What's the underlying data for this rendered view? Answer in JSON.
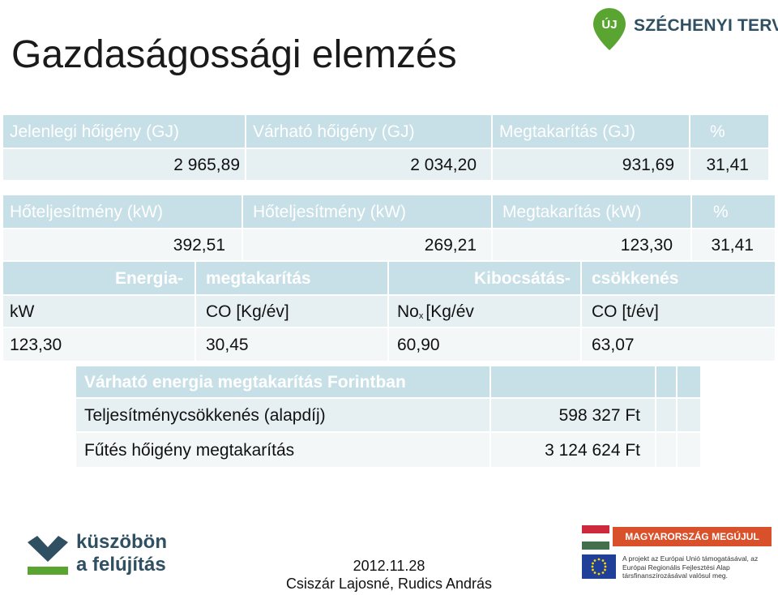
{
  "title": "Gazdaságossági elemzés",
  "logo_top": {
    "text": "SZÉCHENYI TERV",
    "pin_text": "ÚJ"
  },
  "table1": {
    "headers": [
      "Jelenlegi hőigény (GJ)",
      "Várható  hőigény  (GJ)",
      "Megtakarítás (GJ)",
      "%"
    ],
    "values": [
      "2 965,89",
      "2 034,20",
      "931,69",
      "31,41"
    ]
  },
  "table2": {
    "headers": [
      "Hőteljesítmény  (kW)",
      "Hőteljesítmény  (kW)",
      "Megtakarítás (kW)",
      "%"
    ],
    "values": [
      "392,51",
      "269,21",
      "123,30",
      "31,41"
    ]
  },
  "table3": {
    "group_headers": [
      "Energia-",
      "megtakarítás",
      "Kibocsátás-",
      "csökkenés"
    ],
    "sub_headers": [
      "kW",
      "CO [Kg/év]",
      "No",
      "x",
      "[Kg/év",
      "CO [t/év]"
    ],
    "values": [
      "123,30",
      "30,45",
      "60,90",
      "63,07"
    ]
  },
  "table4": {
    "header": "Várható energia megtakarítás Forintban",
    "rows": [
      {
        "label": "Teljesítménycsökkenés (alapdíj)",
        "value": "598 327 Ft"
      },
      {
        "label": "Fűtés hőigény megtakarítás",
        "value": "3 124 624 Ft"
      }
    ]
  },
  "footer": {
    "left_logo": [
      "küszöbön",
      "a felújítás"
    ],
    "date": "2012.11.28",
    "authors": "Csiszár Lajosné, Rudics András",
    "right_logo_band": "MAGYARORSZÁG MEGÚJUL",
    "right_logo_text": "A projekt az Európai Unió támogatásával, az Európai Regionális Fejlesztési Alap társfinanszírozásával valósul meg."
  },
  "colors": {
    "header_bg": "#c7dfe6",
    "row_bg": "#e6f0f3",
    "logo_green": "#5aa532",
    "logo_text": "#2f4f62",
    "mm_band": "#d9512b"
  }
}
